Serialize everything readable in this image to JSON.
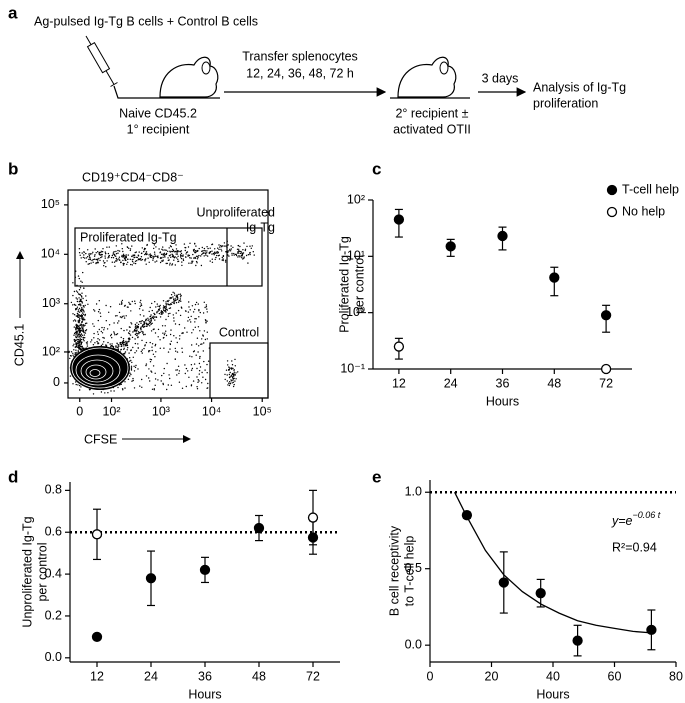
{
  "panel_a": {
    "label": "a",
    "cells_text": "Ag-pulsed Ig-Tg B cells + Control B cells",
    "recipient1": [
      "Naive CD45.2",
      "1° recipient"
    ],
    "transfer": [
      "Transfer splenocytes",
      "12, 24, 36, 48, 72 h"
    ],
    "recipient2": [
      "2° recipient ±",
      "activated OTII"
    ],
    "wait": "3 days",
    "analysis": [
      "Analysis of Ig-Tg",
      "proliferation"
    ]
  },
  "panel_b": {
    "label": "b",
    "title": "CD19⁺CD4⁻CD8⁻",
    "x_label": "CFSE",
    "y_label": "CD45.1",
    "xlim": [
      -28,
      130000
    ],
    "ylim": [
      -38,
      200000
    ],
    "xticks": [
      0,
      {
        "value": 100,
        "label": "10²"
      },
      {
        "value": 1000,
        "label": "10³"
      },
      {
        "value": 10000,
        "label": "10⁴"
      },
      {
        "value": 100000,
        "label": "10⁵"
      }
    ],
    "yticks": [
      0,
      {
        "value": 100,
        "label": "10²"
      },
      {
        "value": 1000,
        "label": "10³"
      },
      {
        "value": 10000,
        "label": "10⁴"
      },
      {
        "value": 100000,
        "label": "10⁵"
      }
    ],
    "gates": {
      "proliferated": "Proliferated Ig-Tg",
      "unproliferated": [
        "Unproliferated",
        "Ig-Tg"
      ],
      "control": "Control"
    }
  },
  "chart_data": [
    {
      "label": "c",
      "type": "scatter",
      "categories": [
        "12",
        "24",
        "36",
        "48",
        "72"
      ],
      "x_label": "Hours",
      "y_label": [
        "Proliferated Ig-Tg",
        "per control"
      ],
      "y_scale": "log",
      "ylim": [
        0.1,
        100
      ],
      "yticks": [
        {
          "value": 0.1,
          "label": "10⁻¹"
        },
        {
          "value": 1,
          "label": "10⁰"
        },
        {
          "value": 10,
          "label": "10¹"
        },
        {
          "value": 100,
          "label": "10²"
        }
      ],
      "legend": "top-right",
      "series": [
        {
          "name": "T-cell help",
          "color": "#000000",
          "marker": "filled",
          "values": [
            45,
            15,
            23,
            4.2,
            0.9
          ],
          "errors": [
            23,
            5,
            10,
            2.2,
            0.45
          ]
        },
        {
          "name": "No help",
          "color": "#000000",
          "marker": "open",
          "values": [
            0.25,
            null,
            null,
            null,
            0.1
          ],
          "errors": [
            0.1,
            null,
            null,
            null,
            null
          ]
        }
      ]
    },
    {
      "label": "d",
      "type": "scatter",
      "categories": [
        "12",
        "24",
        "36",
        "48",
        "72"
      ],
      "x_label": "Hours",
      "y_label": [
        "Unproliferated Ig-Tg",
        "per control"
      ],
      "ylim": [
        -0.02,
        0.84
      ],
      "yticks": [
        {
          "value": 0,
          "label": "0.0"
        },
        0.2,
        0.4,
        0.6,
        0.8
      ],
      "reference_line": 0.6,
      "series": [
        {
          "color": "#000000",
          "marker": "filled",
          "values": [
            0.1,
            0.38,
            0.42,
            0.62,
            0.575
          ],
          "errors": [
            0.01,
            0.13,
            0.06,
            0.06,
            0.08
          ]
        },
        {
          "color": "#000000",
          "marker": "open",
          "values": [
            0.59,
            null,
            null,
            null,
            0.67
          ],
          "errors": [
            0.12,
            null,
            null,
            null,
            0.13
          ]
        }
      ]
    },
    {
      "label": "e",
      "type": "scatter",
      "x": [
        12,
        24,
        36,
        48,
        72
      ],
      "x_label": "Hours",
      "y_label": [
        "B cell receptivity",
        "to T-cell help"
      ],
      "xlim": [
        0,
        80
      ],
      "xticks": [
        0,
        20,
        40,
        60,
        80
      ],
      "ylim": [
        -0.11,
        1.08
      ],
      "yticks": [
        {
          "value": 0,
          "label": "0.0"
        },
        0.5,
        {
          "value": 1,
          "label": "1.0"
        }
      ],
      "reference_line": 1,
      "series": [
        {
          "color": "#000000",
          "marker": "filled",
          "values": [
            0.85,
            0.41,
            0.34,
            0.03,
            0.1
          ],
          "errors": [
            0.02,
            0.2,
            0.09,
            0.1,
            0.13
          ]
        }
      ],
      "fit": {
        "x": [
          8,
          12,
          18,
          24,
          30,
          36,
          42,
          48,
          54,
          60,
          66,
          72
        ],
        "y": [
          1.0,
          0.84,
          0.62,
          0.46,
          0.35,
          0.27,
          0.21,
          0.16,
          0.13,
          0.11,
          0.09,
          0.08
        ]
      },
      "annotations": {
        "equation": "y=e",
        "exponent": "−0.06 t",
        "r_squared": "R²=0.94"
      }
    }
  ]
}
